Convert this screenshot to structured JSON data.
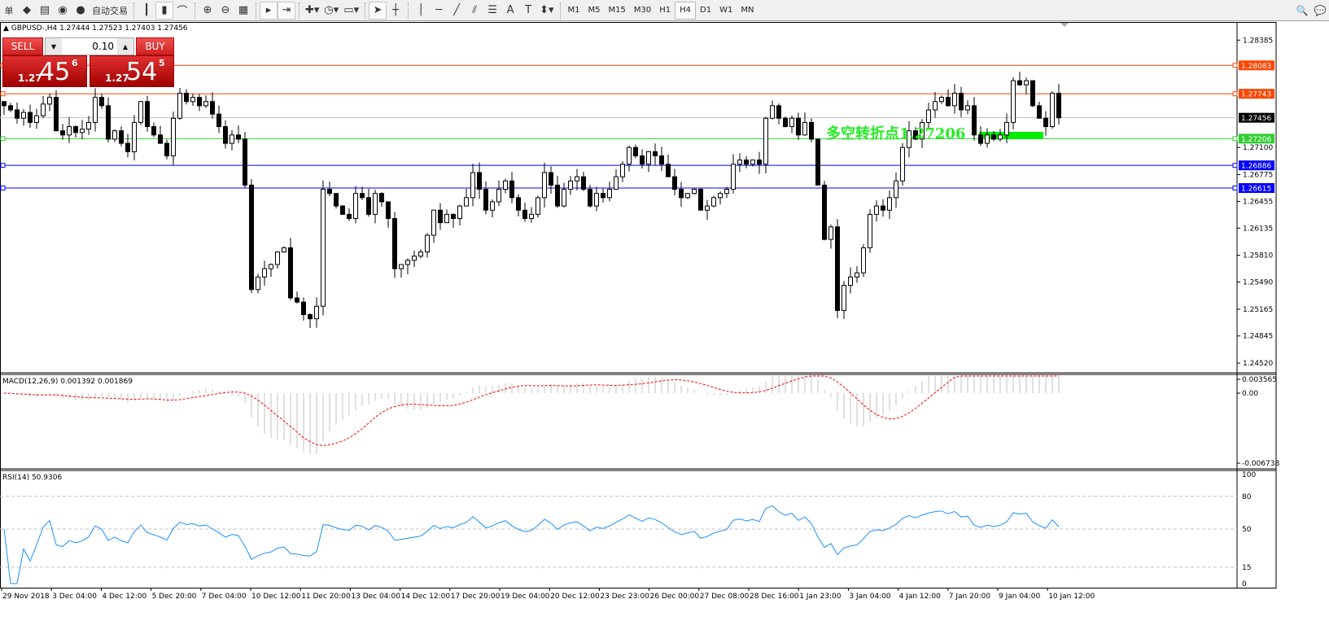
{
  "toolbar": {
    "items": [
      {
        "name": "order-label",
        "glyph": "单",
        "text": true
      },
      {
        "name": "market-watch-icon",
        "glyph": "◆"
      },
      {
        "name": "navigator-icon",
        "glyph": "▤"
      },
      {
        "name": "signal-icon",
        "glyph": "◉"
      },
      {
        "name": "auto-trading-icon",
        "glyph": "●"
      },
      {
        "name": "auto-trading-label",
        "glyph": "自动交易",
        "text": true
      },
      {
        "sep": true
      },
      {
        "name": "bar-chart-icon",
        "glyph": "┃"
      },
      {
        "name": "candlestick-icon",
        "glyph": "▮",
        "selected": true
      },
      {
        "name": "line-chart-icon",
        "glyph": "⌒"
      },
      {
        "sep": true
      },
      {
        "name": "zoom-in-icon",
        "glyph": "⊕"
      },
      {
        "name": "zoom-out-icon",
        "glyph": "⊖"
      },
      {
        "name": "tile-windows-icon",
        "glyph": "▦"
      },
      {
        "sep": true
      },
      {
        "name": "auto-scroll-icon",
        "glyph": "▸",
        "selected": true
      },
      {
        "name": "chart-shift-icon",
        "glyph": "⇥",
        "selected": true
      },
      {
        "sep": true
      },
      {
        "name": "indicators-icon",
        "glyph": "✚▾"
      },
      {
        "name": "periods-icon",
        "glyph": "◷▾"
      },
      {
        "name": "templates-icon",
        "glyph": "▭▾"
      },
      {
        "sep": true
      },
      {
        "name": "cursor-icon",
        "glyph": "➤",
        "selected": true
      },
      {
        "name": "crosshair-icon",
        "glyph": "┼"
      },
      {
        "sep": true
      },
      {
        "name": "vertical-line-icon",
        "glyph": "│"
      },
      {
        "name": "horizontal-line-icon",
        "glyph": "─"
      },
      {
        "name": "trendline-icon",
        "glyph": "╱"
      },
      {
        "name": "equidistant-channel-icon",
        "glyph": "⫽"
      },
      {
        "name": "fibonacci-icon",
        "glyph": "☰"
      },
      {
        "name": "text-icon",
        "glyph": "A"
      },
      {
        "name": "text-label-icon",
        "glyph": "T"
      },
      {
        "name": "arrows-icon",
        "glyph": "⬍▾"
      },
      {
        "sep": true
      }
    ],
    "timeframes": [
      "M1",
      "M5",
      "M15",
      "M30",
      "H1",
      "H4",
      "D1",
      "W1",
      "MN"
    ],
    "selected_timeframe": "H4",
    "search_icon": "🔍",
    "community_icon": "💬"
  },
  "chart_header": "GBPUSD-,H4  1.27444 1.27523 1.27403 1.27456",
  "trade_panel": {
    "sell_label": "SELL",
    "buy_label": "BUY",
    "lot": "0.10",
    "sell_small": "1.27",
    "sell_main": "45",
    "sell_exp": "6",
    "buy_small": "1.27",
    "buy_main": "54",
    "buy_exp": "5"
  },
  "annotation": {
    "text": "多空转折点1.27206",
    "color": "#22ee22"
  },
  "chart_data": {
    "type": "candlestick",
    "symbol": "GBPUSD-",
    "timeframe": "H4",
    "price_ticks": [
      "1.28385",
      "1.27100",
      "1.26775",
      "1.26455",
      "1.26135",
      "1.25810",
      "1.25490",
      "1.25165",
      "1.24845",
      "1.24520"
    ],
    "levels": [
      {
        "price": "1.28083",
        "color": "#ff4500"
      },
      {
        "price": "1.27743",
        "color": "#ff4500"
      },
      {
        "price": "1.27456",
        "color": "#000000",
        "line": "#c0c0c0"
      },
      {
        "price": "1.27206",
        "color": "#32cd32"
      },
      {
        "price": "1.26886",
        "color": "#0000ff"
      },
      {
        "price": "1.26615",
        "color": "#0000ff"
      }
    ],
    "close": [
      1.276,
      1.2755,
      1.2745,
      1.2752,
      1.274,
      1.2748,
      1.2762,
      1.277,
      1.273,
      1.2725,
      1.2735,
      1.2728,
      1.2732,
      1.274,
      1.277,
      1.276,
      1.272,
      1.273,
      1.2715,
      1.2705,
      1.274,
      1.2765,
      1.2735,
      1.2725,
      1.2715,
      1.27,
      1.2745,
      1.2775,
      1.2765,
      1.277,
      1.276,
      1.2765,
      1.275,
      1.2735,
      1.2715,
      1.2725,
      1.272,
      1.2665,
      1.254,
      1.2555,
      1.2565,
      1.257,
      1.2585,
      1.259,
      1.253,
      1.2525,
      1.251,
      1.2505,
      1.252,
      1.266,
      1.2655,
      1.264,
      1.263,
      1.2625,
      1.2655,
      1.265,
      1.263,
      1.2655,
      1.2645,
      1.2625,
      1.2565,
      1.257,
      1.2575,
      1.258,
      1.2585,
      1.2605,
      1.2635,
      1.262,
      1.263,
      1.2625,
      1.264,
      1.265,
      1.268,
      1.266,
      1.2635,
      1.2645,
      1.266,
      1.267,
      1.265,
      1.2635,
      1.2625,
      1.263,
      1.265,
      1.268,
      1.2665,
      1.264,
      1.266,
      1.267,
      1.2675,
      1.266,
      1.264,
      1.2655,
      1.265,
      1.266,
      1.2675,
      1.269,
      1.271,
      1.27,
      1.269,
      1.2705,
      1.27,
      1.269,
      1.2675,
      1.266,
      1.265,
      1.2655,
      1.266,
      1.2635,
      1.264,
      1.265,
      1.2655,
      1.266,
      1.269,
      1.2695,
      1.269,
      1.2695,
      1.269,
      1.2745,
      1.276,
      1.2745,
      1.2735,
      1.2745,
      1.2725,
      1.274,
      1.272,
      1.2665,
      1.26,
      1.2615,
      1.2515,
      1.2545,
      1.2555,
      1.256,
      1.259,
      1.263,
      1.264,
      1.2635,
      1.265,
      1.267,
      1.271,
      1.273,
      1.272,
      1.274,
      1.2755,
      1.2765,
      1.277,
      1.276,
      1.2775,
      1.2755,
      1.276,
      1.2725,
      1.2715,
      1.2725,
      1.272,
      1.2725,
      1.274,
      1.279,
      1.2785,
      1.279,
      1.276,
      1.2745,
      1.2735,
      1.2775,
      1.27456
    ],
    "time_labels": [
      "29 Nov 2018",
      "3 Dec 04:00",
      "4 Dec 12:00",
      "5 Dec 20:00",
      "7 Dec 04:00",
      "10 Dec 12:00",
      "11 Dec 20:00",
      "13 Dec 04:00",
      "14 Dec 12:00",
      "17 Dec 20:00",
      "19 Dec 04:00",
      "20 Dec 12:00",
      "23 Dec 23:00",
      "26 Dec 00:00",
      "27 Dec 08:00",
      "28 Dec 16:00",
      "1 Jan 23:00",
      "3 Jan 04:00",
      "4 Jan 12:00",
      "7 Jan 20:00",
      "9 Jan 04:00",
      "10 Jan 12:00"
    ],
    "macd": {
      "label": "MACD(12,26,9) 0.001392 0.001869",
      "ticks": [
        "0.003565",
        "0.00",
        "-0.006738"
      ],
      "histogram_color": "#c0c0c0",
      "signal_color": "#ff0000"
    },
    "rsi": {
      "label": "RSI(14) 50.9306",
      "ticks": [
        "100",
        "80",
        "50",
        "15",
        "0"
      ],
      "levels": [
        80,
        50,
        15
      ],
      "color": "#1e90ff"
    }
  }
}
